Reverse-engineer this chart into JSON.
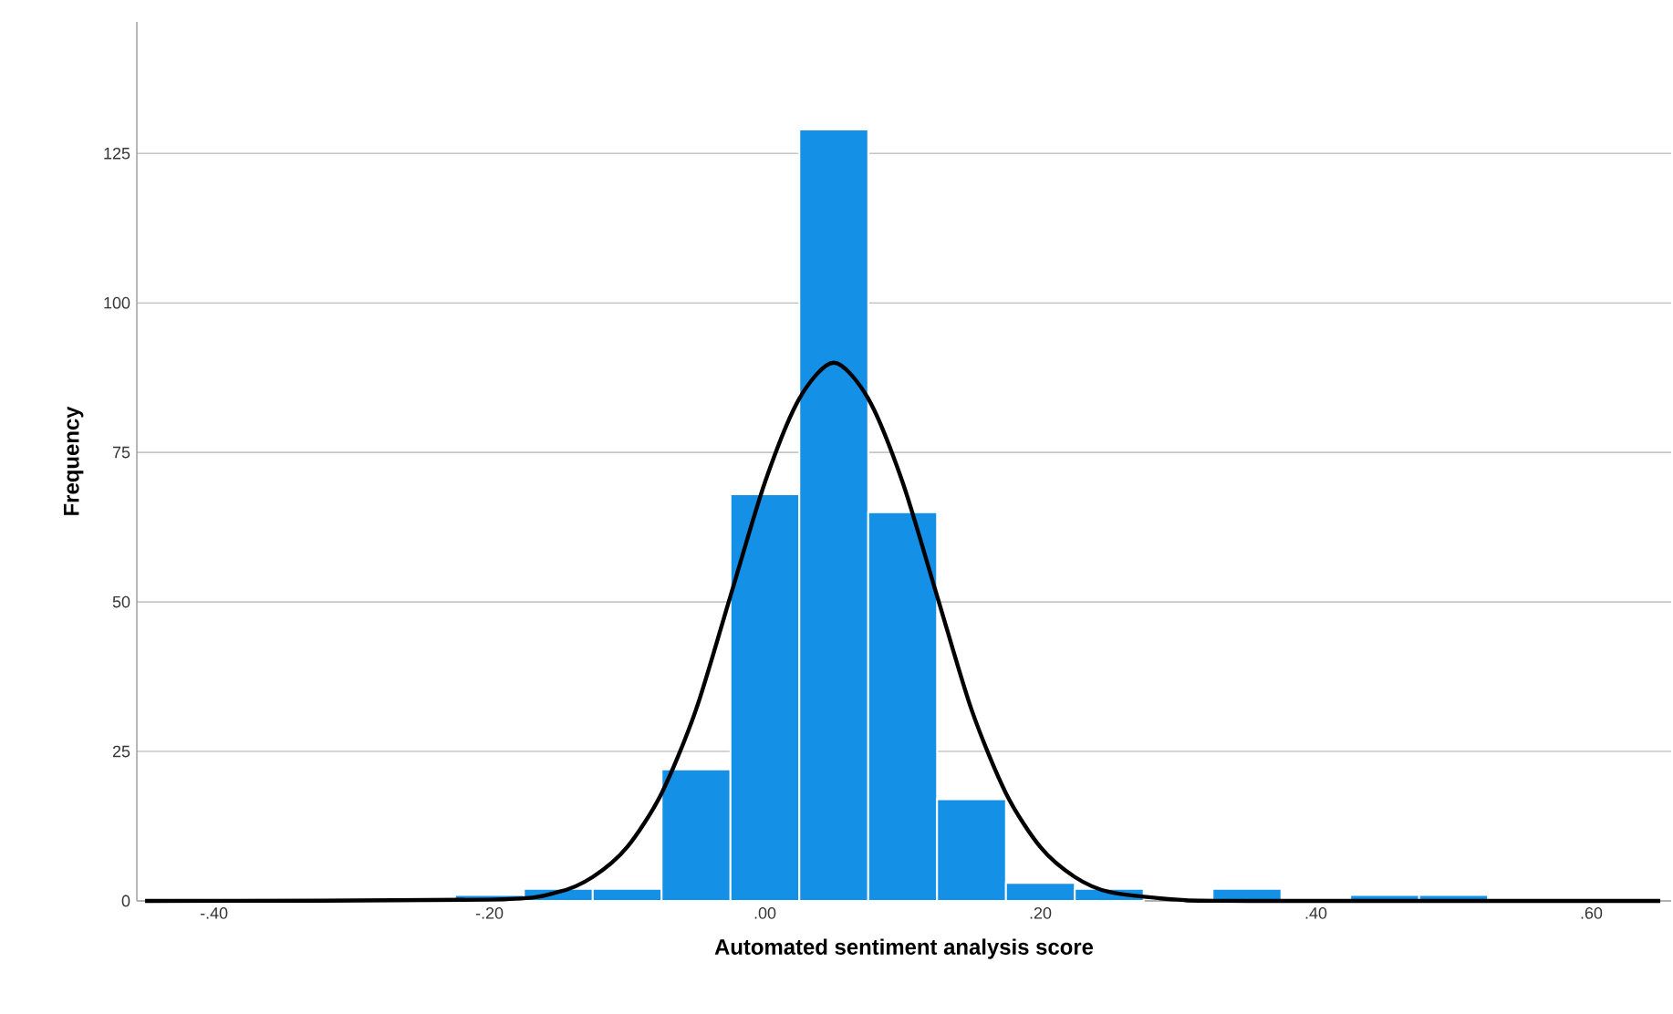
{
  "chart_data": {
    "type": "histogram",
    "xlabel": "Automated sentiment analysis score",
    "ylabel": "Frequency",
    "bins": [
      -0.225,
      -0.175,
      -0.125,
      -0.075,
      -0.025,
      0.025,
      0.075,
      0.125,
      0.175,
      0.225,
      0.275,
      0.325,
      0.375,
      0.425,
      0.475,
      0.525
    ],
    "values": [
      1,
      2,
      2,
      22,
      68,
      129,
      65,
      17,
      3,
      2,
      0,
      2,
      0,
      1,
      1
    ],
    "color": "#1490e6",
    "series": [
      {
        "type": "line",
        "color": "#000000",
        "x": [
          -0.45,
          -0.2,
          -0.15,
          -0.125,
          -0.1,
          -0.075,
          -0.05,
          -0.025,
          0,
          0.025,
          0.05,
          0.075,
          0.1,
          0.125,
          0.15,
          0.175,
          0.2,
          0.225,
          0.25,
          0.3,
          0.35,
          0.65
        ],
        "values": [
          0,
          0.2,
          1.5,
          4,
          9,
          18,
          32,
          51,
          70,
          84,
          90,
          84,
          70,
          51,
          32,
          18,
          9,
          4,
          1.5,
          0.2,
          0,
          0
        ]
      }
    ],
    "xlim": [
      -0.456,
      0.658
    ],
    "xticks": [
      {
        "value": -0.4,
        "label": "-.40"
      },
      {
        "value": -0.2,
        "label": "-.20"
      },
      {
        "value": 0,
        "label": ".00"
      },
      {
        "value": 0.2,
        "label": ".20"
      },
      {
        "value": 0.4,
        "label": ".40"
      },
      {
        "value": 0.6,
        "label": ".60"
      }
    ],
    "ylim": [
      0,
      147
    ],
    "yticks": [
      0,
      25,
      50,
      75,
      100,
      125
    ],
    "grid": "y"
  }
}
